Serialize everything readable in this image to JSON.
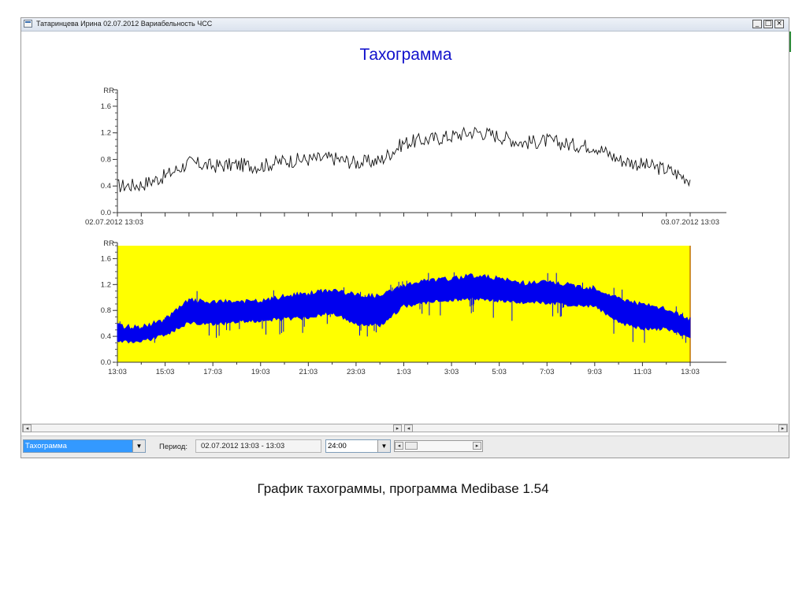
{
  "window": {
    "title": "Татаринцева Ирина 02.07.2012 Вариабельность ЧСС",
    "controls": {
      "minimize": "_",
      "maximize": "□",
      "close": "×"
    },
    "icon": "window-app-icon"
  },
  "chart_title": "Тахограмма",
  "chart_data": [
    {
      "type": "line",
      "title": "Тахограмма",
      "ylabel": "RR",
      "ylim": [
        0.0,
        1.8
      ],
      "y_ticks": [
        "1.6",
        "1.2",
        "0.8",
        "0.4",
        "0.0"
      ],
      "x_labels": [
        "02.07.2012 13:03",
        "03.07.2012 13:03"
      ],
      "background": "#ffffff",
      "line_color": "#111111",
      "x_hours": [
        0,
        1,
        2,
        3,
        4,
        5,
        6,
        7,
        8,
        9,
        10,
        11,
        12,
        13,
        14,
        15,
        16,
        17,
        18,
        19,
        20,
        21,
        22,
        23,
        24
      ],
      "values": [
        0.4,
        0.42,
        0.55,
        0.75,
        0.7,
        0.72,
        0.7,
        0.78,
        0.8,
        0.82,
        0.75,
        0.78,
        1.05,
        1.1,
        1.15,
        1.22,
        1.15,
        1.05,
        1.08,
        1.02,
        1.0,
        0.8,
        0.72,
        0.65,
        0.5
      ]
    },
    {
      "type": "area",
      "ylabel": "RR",
      "ylim": [
        0.0,
        1.8
      ],
      "y_ticks": [
        "1.6",
        "1.2",
        "0.8",
        "0.4",
        "0.0"
      ],
      "x_labels": [
        "13:03",
        "15:03",
        "17:03",
        "19:03",
        "21:03",
        "23:03",
        "1:03",
        "3:03",
        "5:03",
        "7:03",
        "9:03",
        "11:03",
        "13:03"
      ],
      "background": "#ffff00",
      "band_color": "#0000ee",
      "x_hours": [
        0,
        1,
        2,
        3,
        4,
        5,
        6,
        7,
        8,
        9,
        10,
        11,
        12,
        13,
        14,
        15,
        16,
        17,
        18,
        19,
        20,
        21,
        22,
        23,
        24
      ],
      "band_low": [
        0.35,
        0.35,
        0.45,
        0.65,
        0.62,
        0.65,
        0.68,
        0.7,
        0.72,
        0.8,
        0.62,
        0.6,
        0.9,
        0.95,
        1.0,
        1.02,
        0.98,
        0.95,
        0.95,
        0.92,
        0.9,
        0.65,
        0.55,
        0.55,
        0.4
      ],
      "band_high": [
        0.52,
        0.5,
        0.62,
        0.92,
        0.88,
        0.9,
        0.9,
        0.98,
        1.02,
        1.08,
        1.0,
        0.98,
        1.15,
        1.22,
        1.25,
        1.3,
        1.25,
        1.18,
        1.2,
        1.15,
        1.1,
        0.95,
        0.85,
        0.78,
        0.62
      ]
    }
  ],
  "toolbar": {
    "view_select": "Тахограмма",
    "period_label": "Период:",
    "period_value": "02.07.2012 13:03 - 13:03",
    "duration_select": "24:00"
  },
  "caption": "График тахограммы, программа Medibase 1.54"
}
